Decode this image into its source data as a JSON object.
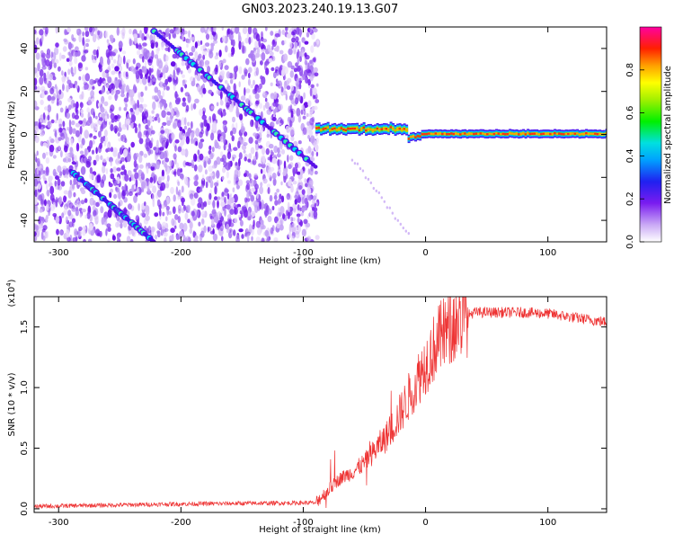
{
  "title": "GN03.2023.240.19.13.G07",
  "chart_data": [
    {
      "type": "heatmap",
      "xlabel": "Height of straight line (km)",
      "ylabel": "Frequency (Hz)",
      "xlim": [
        -320,
        148
      ],
      "ylim": [
        -50,
        50
      ],
      "xticks": [
        -300,
        -200,
        -100,
        0,
        100
      ],
      "yticks": [
        -40,
        -20,
        0,
        20,
        40
      ],
      "colorbar": {
        "label": "Normalized spectral amplitude",
        "range": [
          0,
          1
        ],
        "ticks": [
          "0.0",
          "0.2",
          "0.4",
          "0.6",
          "0.8"
        ]
      },
      "features": [
        {
          "name": "descending tone A",
          "from": [
            -222,
            48
          ],
          "to": [
            -90,
            -15
          ]
        },
        {
          "name": "descending tone B",
          "from": [
            -290,
            -17
          ],
          "to": [
            -222,
            -50
          ]
        },
        {
          "name": "carrier line",
          "from": [
            -90,
            3
          ],
          "to": [
            148,
            0
          ]
        }
      ],
      "noise_region_x": [
        -320,
        -88
      ]
    },
    {
      "type": "line",
      "xlabel": "Height of straight line (km)",
      "ylabel": "SNR (10 * v/v)",
      "scale_note": "(x10^4)",
      "xlim": [
        -320,
        148
      ],
      "ylim": [
        -0.03,
        1.75
      ],
      "xticks": [
        -300,
        -200,
        -100,
        0,
        100
      ],
      "yticks": [
        "0.0",
        "0.5",
        "1.0",
        "1.5"
      ],
      "color": "#ee3333",
      "profile_x": [
        -320,
        -200,
        -90,
        -80,
        -70,
        -60,
        -50,
        -40,
        -30,
        -20,
        -10,
        0,
        10,
        20,
        30,
        40,
        60,
        80,
        100,
        120,
        148
      ],
      "profile_y": [
        0.02,
        0.04,
        0.05,
        0.15,
        0.25,
        0.3,
        0.38,
        0.5,
        0.62,
        0.8,
        1.0,
        1.2,
        1.38,
        1.5,
        1.58,
        1.62,
        1.62,
        1.62,
        1.61,
        1.58,
        1.54
      ]
    }
  ]
}
